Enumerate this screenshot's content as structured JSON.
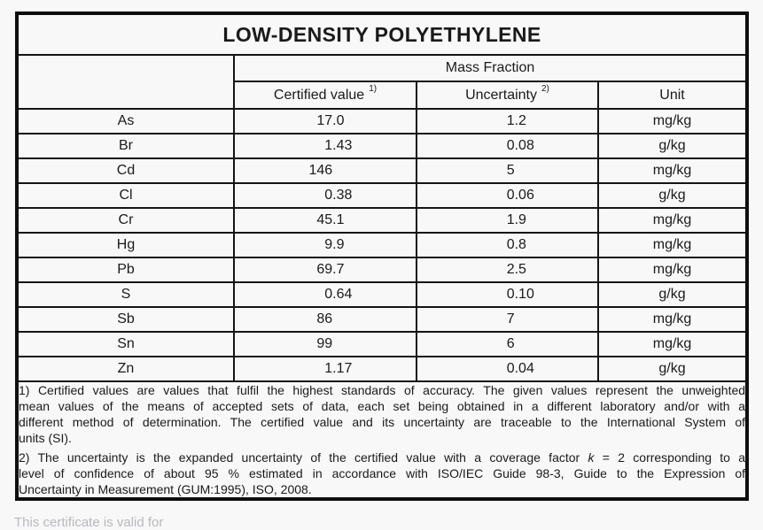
{
  "title": "LOW-DENSITY POLYETHYLENE",
  "table": {
    "group_header": "Mass Fraction",
    "columns": {
      "certified_label": "Certified value",
      "certified_note_ref": "1)",
      "uncertainty_label": "Uncertainty",
      "uncertainty_note_ref": "2)",
      "unit_label": "Unit"
    },
    "rows": [
      {
        "element": "As",
        "certified_value": "17.0",
        "uncertainty": "1.2",
        "unit": "mg/kg"
      },
      {
        "element": "Br",
        "certified_value": "1.43",
        "uncertainty": "0.08",
        "unit": "g/kg"
      },
      {
        "element": "Cd",
        "certified_value": "146",
        "uncertainty": "5",
        "unit": "mg/kg"
      },
      {
        "element": "Cl",
        "certified_value": "0.38",
        "uncertainty": "0.06",
        "unit": "g/kg"
      },
      {
        "element": "Cr",
        "certified_value": "45.1",
        "uncertainty": "1.9",
        "unit": "mg/kg"
      },
      {
        "element": "Hg",
        "certified_value": "9.9",
        "uncertainty": "0.8",
        "unit": "mg/kg"
      },
      {
        "element": "Pb",
        "certified_value": "69.7",
        "uncertainty": "2.5",
        "unit": "mg/kg"
      },
      {
        "element": "S",
        "certified_value": "0.64",
        "uncertainty": "0.10",
        "unit": "g/kg"
      },
      {
        "element": "Sb",
        "certified_value": "86",
        "uncertainty": "7",
        "unit": "mg/kg"
      },
      {
        "element": "Sn",
        "certified_value": "99",
        "uncertainty": "6",
        "unit": "mg/kg"
      },
      {
        "element": "Zn",
        "certified_value": "1.17",
        "uncertainty": "0.04",
        "unit": "g/kg"
      }
    ]
  },
  "footnote1": {
    "lines": [
      "1) Certified values are values that fulfil the highest standards of accuracy. The given values represent the unweighted",
      "mean values of the means of accepted sets of data, each set being obtained in a different laboratory and/or with a",
      "different method of determination. The certified value and its uncertainty are traceable to the International System of",
      "units (SI)."
    ]
  },
  "footnote2": {
    "line1_pre": "2) The uncertainty is the expanded uncertainty of the certified value with a coverage factor ",
    "line1_k": "k",
    "line1_post": " = 2 corresponding to a",
    "line2": "level of confidence of about 95 % estimated in accordance with ISO/IEC Guide 98-3, Guide to the Expression of",
    "line3": "Uncertainty in Measurement (GUM:1995), ISO, 2008."
  },
  "footer_fragment": "This certificate is valid for",
  "colors": {
    "page_bg": "#f8f8f8",
    "text": "#1a1a1a",
    "border": "#0e0e0e"
  }
}
